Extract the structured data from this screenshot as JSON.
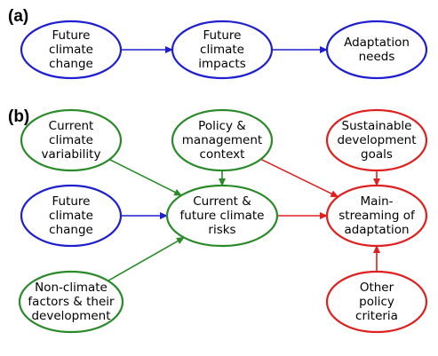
{
  "colors": {
    "blue": "#1f1fd0",
    "green": "#2a8a2a",
    "red": "#e02020"
  },
  "panel_a": {
    "label": "(a)",
    "nodes": [
      {
        "id": "a_future_change",
        "color": "blue",
        "lines": [
          "Future",
          "climate",
          "change"
        ]
      },
      {
        "id": "a_future_impacts",
        "color": "blue",
        "lines": [
          "Future",
          "climate",
          "impacts"
        ]
      },
      {
        "id": "a_adaptation_needs",
        "color": "blue",
        "lines": [
          "Adaptation",
          "needs"
        ]
      }
    ],
    "edges": [
      {
        "from": "a_future_change",
        "to": "a_future_impacts",
        "color": "blue"
      },
      {
        "from": "a_future_impacts",
        "to": "a_adaptation_needs",
        "color": "blue"
      }
    ]
  },
  "panel_b": {
    "label": "(b)",
    "nodes": [
      {
        "id": "b_current_variability",
        "color": "green",
        "lines": [
          "Current",
          "climate",
          "variability"
        ]
      },
      {
        "id": "b_policy_context",
        "color": "green",
        "lines": [
          "Policy &",
          "management",
          "context"
        ]
      },
      {
        "id": "b_sustainable_goals",
        "color": "red",
        "lines": [
          "Sustainable",
          "development",
          "goals"
        ]
      },
      {
        "id": "b_future_change",
        "color": "blue",
        "lines": [
          "Future",
          "climate",
          "change"
        ]
      },
      {
        "id": "b_risks",
        "color": "green",
        "lines": [
          "Current &",
          "future climate",
          "risks"
        ]
      },
      {
        "id": "b_mainstreaming",
        "color": "red",
        "lines": [
          "Main-",
          "streaming of",
          "adaptation"
        ]
      },
      {
        "id": "b_non_climate",
        "color": "green",
        "lines": [
          "Non-climate",
          "factors & their",
          "development"
        ]
      },
      {
        "id": "b_other_policy",
        "color": "red",
        "lines": [
          "Other",
          "policy",
          "criteria"
        ]
      }
    ],
    "edges": [
      {
        "from": "b_current_variability",
        "to": "b_risks",
        "color": "green"
      },
      {
        "from": "b_policy_context",
        "to": "b_risks",
        "color": "green"
      },
      {
        "from": "b_future_change",
        "to": "b_risks",
        "color": "blue"
      },
      {
        "from": "b_non_climate",
        "to": "b_risks",
        "color": "green"
      },
      {
        "from": "b_policy_context",
        "to": "b_mainstreaming",
        "color": "red"
      },
      {
        "from": "b_sustainable_goals",
        "to": "b_mainstreaming",
        "color": "red"
      },
      {
        "from": "b_risks",
        "to": "b_mainstreaming",
        "color": "red"
      },
      {
        "from": "b_other_policy",
        "to": "b_mainstreaming",
        "color": "red"
      }
    ]
  }
}
